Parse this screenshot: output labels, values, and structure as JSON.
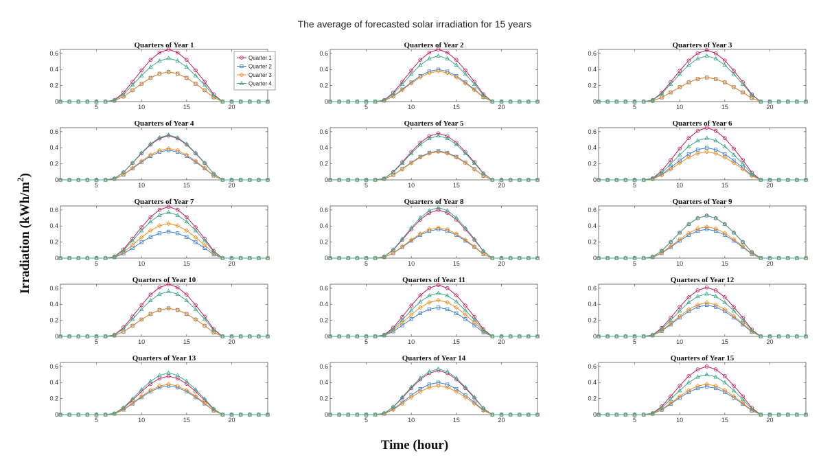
{
  "chart_data": {
    "type": "line",
    "title": "The average of forecasted solar irradiation for 15 years",
    "xlabel": "Time (hour)",
    "ylabel_main": "Irradiation (kWh/m",
    "ylabel_sup": "2",
    "ylabel_close": ")",
    "xlim": [
      1,
      24
    ],
    "ylim": [
      0,
      0.65
    ],
    "xticks": [
      5,
      10,
      15,
      20
    ],
    "x": [
      1,
      2,
      3,
      4,
      5,
      6,
      7,
      8,
      9,
      10,
      11,
      12,
      13,
      14,
      15,
      16,
      17,
      18,
      19,
      20,
      21,
      22,
      23,
      24
    ],
    "series_names": [
      "Quarter 1",
      "Quarter 2",
      "Quarter 3",
      "Quarter 4"
    ],
    "series_colors": [
      "#c2185b",
      "#3a7fd5",
      "#ef8a1e",
      "#3fa88a"
    ],
    "panels": [
      {
        "title": "Quarters of Year 1",
        "yticks": [
          0,
          0.2,
          0.4,
          0.6
        ],
        "peaks": [
          0.65,
          0.37,
          0.37,
          0.54
        ]
      },
      {
        "title": "Quarters of Year 2",
        "yticks": [
          0,
          0.2,
          0.4,
          0.6
        ],
        "peaks": [
          0.65,
          0.4,
          0.38,
          0.57
        ]
      },
      {
        "title": "Quarters of Year 3",
        "yticks": [
          0,
          0.2,
          0.4,
          0.6
        ],
        "peaks": [
          0.64,
          0.3,
          0.3,
          0.57
        ]
      },
      {
        "title": "Quarters of Year 4",
        "yticks": [
          0,
          0.2,
          0.4,
          0.6
        ],
        "peaks": [
          0.55,
          0.37,
          0.39,
          0.56
        ]
      },
      {
        "title": "Quarters of Year 5",
        "yticks": [
          0,
          0.2,
          0.4,
          0.6
        ],
        "peaks": [
          0.58,
          0.36,
          0.35,
          0.55
        ]
      },
      {
        "title": "Quarters of Year 6",
        "yticks": [
          0,
          0.2,
          0.4,
          0.6
        ],
        "peaks": [
          0.65,
          0.4,
          0.35,
          0.52
        ]
      },
      {
        "title": "Quarters of Year 7",
        "yticks": [
          0,
          0.2,
          0.4,
          0.6
        ],
        "peaks": [
          0.64,
          0.33,
          0.43,
          0.57
        ]
      },
      {
        "title": "Quarters of Year 8",
        "yticks": [
          0,
          0.2,
          0.4,
          0.6
        ],
        "peaks": [
          0.6,
          0.36,
          0.38,
          0.63
        ]
      },
      {
        "title": "Quarters of Year 9",
        "yticks": [
          0,
          0.2,
          0.4,
          0.6
        ],
        "peaks": [
          0.53,
          0.36,
          0.39,
          0.53
        ]
      },
      {
        "title": "Quarters of Year 10",
        "yticks": [
          0,
          0.2,
          0.4,
          0.6
        ],
        "peaks": [
          0.65,
          0.35,
          0.35,
          0.56
        ]
      },
      {
        "title": "Quarters of Year 11",
        "yticks": [
          0,
          0.2,
          0.4,
          0.6
        ],
        "peaks": [
          0.64,
          0.36,
          0.45,
          0.54
        ]
      },
      {
        "title": "Quarters of Year 12",
        "yticks": [
          0,
          0.2,
          0.4,
          0.6
        ],
        "peaks": [
          0.61,
          0.39,
          0.42,
          0.53
        ]
      },
      {
        "title": "Quarters of Year 13",
        "yticks": [
          0,
          0.2,
          0.4,
          0.6
        ],
        "peaks": [
          0.48,
          0.36,
          0.38,
          0.52
        ]
      },
      {
        "title": "Quarters of Year 14",
        "yticks": [
          0,
          0.2,
          0.4,
          0.6
        ],
        "peaks": [
          0.55,
          0.4,
          0.36,
          0.57
        ]
      },
      {
        "title": "Quarters of Year 15",
        "yticks": [
          0,
          0.2,
          0.4,
          0.6
        ],
        "peaks": [
          0.6,
          0.35,
          0.38,
          0.5
        ]
      }
    ],
    "profile": [
      0,
      0,
      0,
      0,
      0,
      0,
      0.03,
      0.17,
      0.38,
      0.6,
      0.8,
      0.94,
      1.0,
      0.94,
      0.8,
      0.6,
      0.38,
      0.14,
      0,
      0,
      0,
      0,
      0,
      0
    ],
    "legend_location": "top-right of first panel"
  }
}
